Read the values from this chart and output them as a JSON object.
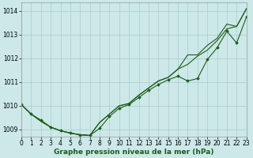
{
  "x_label": "Graphe pression niveau de la mer (hPa)",
  "x_ticks": [
    0,
    1,
    2,
    3,
    4,
    5,
    6,
    7,
    8,
    9,
    10,
    11,
    12,
    13,
    14,
    15,
    16,
    17,
    18,
    19,
    20,
    21,
    22,
    23
  ],
  "y_ticks": [
    1009,
    1010,
    1011,
    1012,
    1013,
    1014
  ],
  "xlim": [
    0,
    23
  ],
  "ylim": [
    1008.7,
    1014.35
  ],
  "bg_color": "#cce8e8",
  "grid_color": "#aacccc",
  "line_color": "#1a5c1a",
  "line1": [
    1010.05,
    1009.65,
    1009.4,
    1009.1,
    1008.95,
    1008.85,
    1008.78,
    1008.75,
    1009.05,
    1009.55,
    1009.9,
    1010.05,
    1010.35,
    1010.65,
    1010.9,
    1011.1,
    1011.25,
    1011.05,
    1011.15,
    1011.95,
    1012.45,
    1013.15,
    1012.65,
    1013.75
  ],
  "line2": [
    1010.05,
    1009.65,
    1009.35,
    1009.1,
    1008.95,
    1008.85,
    1008.78,
    1008.75,
    1009.3,
    1009.65,
    1010.0,
    1010.1,
    1010.45,
    1010.75,
    1011.05,
    1011.2,
    1011.55,
    1011.75,
    1012.1,
    1012.35,
    1012.75,
    1013.25,
    1013.35,
    1014.1
  ],
  "line3": [
    1010.05,
    1009.65,
    1009.35,
    1009.1,
    1008.95,
    1008.85,
    1008.78,
    1008.75,
    1009.3,
    1009.65,
    1010.0,
    1010.1,
    1010.45,
    1010.75,
    1011.05,
    1011.2,
    1011.55,
    1012.15,
    1012.15,
    1012.55,
    1012.85,
    1013.45,
    1013.35,
    1014.1
  ],
  "marker": "D",
  "markersize": 1.8,
  "linewidth": 0.8,
  "tick_fontsize": 5.5,
  "xlabel_fontsize": 6.5
}
